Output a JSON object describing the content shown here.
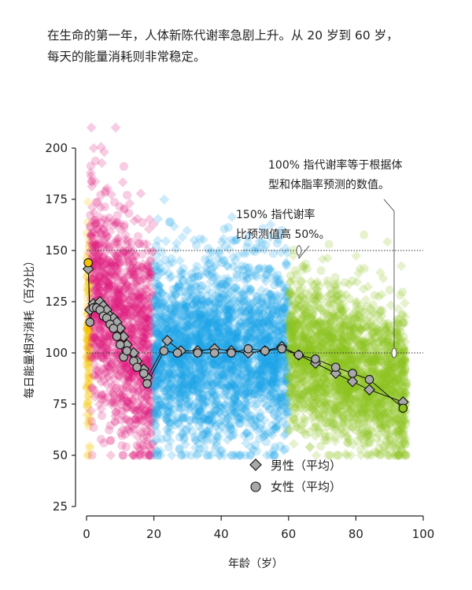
{
  "intro": {
    "line1": "在生命的第一年，人体新陈代谢率急剧上升。从 20 岁到 60 岁，",
    "line2": "每天的能量消耗则非常稳定。"
  },
  "chart_data": {
    "type": "scatter",
    "xlabel": "年龄（岁）",
    "ylabel": "每日能量相对消耗（百分比）",
    "xlim": [
      0,
      100
    ],
    "ylim": [
      25,
      200
    ],
    "x_ticks": [
      0,
      20,
      40,
      60,
      80,
      100
    ],
    "y_ticks": [
      25,
      50,
      75,
      100,
      125,
      150,
      175,
      200
    ],
    "reference_lines": [
      {
        "y": 150,
        "label": "150% 指代谢率比预测值高 50%。",
        "label_lines": [
          "150% 指代谢率",
          "比预测值高 50%。"
        ]
      },
      {
        "y": 100,
        "label": "100% 指代谢率等于根据体型和体脂率预测的数值。",
        "label_lines": [
          "100% 指代谢率等于根据体",
          "型和体脂率预测的数值。"
        ]
      }
    ],
    "legend": {
      "position": "bottom-center",
      "entries": [
        "男性（平均）",
        "女性（平均）"
      ]
    },
    "scatter_groups": [
      {
        "age_range": [
          0,
          1
        ],
        "color": "#f6c500",
        "y_center": 110,
        "y_spread": 25
      },
      {
        "age_range": [
          1,
          20
        ],
        "color": "#e0197d",
        "y_center": 125,
        "y_spread": 28
      },
      {
        "age_range": [
          20,
          60
        ],
        "color": "#1aa3e8",
        "y_center": 100,
        "y_spread": 22
      },
      {
        "age_range": [
          60,
          95
        ],
        "color": "#8dc21f",
        "y_center": 98,
        "y_spread": 18
      }
    ],
    "series": [
      {
        "name": "男性（平均）",
        "x": [
          0.5,
          1,
          2,
          3,
          4,
          5,
          6,
          7,
          8,
          9,
          10,
          11,
          12,
          14,
          15,
          17,
          18,
          24,
          28,
          33,
          38,
          43,
          48,
          53,
          58,
          63,
          68,
          74,
          79,
          84,
          94
        ],
        "y": [
          141,
          121,
          124,
          123,
          125,
          123,
          121,
          118,
          117,
          115,
          112,
          108,
          104,
          100,
          96,
          92,
          88,
          106,
          101,
          101,
          102,
          101,
          100,
          101,
          103,
          99,
          95,
          90,
          86,
          82,
          76
        ]
      },
      {
        "name": "女性（平均）",
        "x": [
          0.5,
          1,
          2,
          3,
          4,
          5,
          6,
          7,
          8,
          9,
          10,
          11,
          12,
          14,
          15,
          17,
          18,
          23,
          27,
          33,
          38,
          43,
          48,
          53,
          58,
          63,
          68,
          74,
          79,
          84,
          94
        ],
        "y": [
          144,
          115,
          122,
          122,
          121,
          118,
          117,
          114,
          112,
          108,
          104,
          98,
          101,
          96,
          93,
          90,
          85,
          101,
          100,
          100,
          100,
          100,
          102,
          101,
          102,
          99,
          97,
          93,
          90,
          87,
          73
        ]
      }
    ]
  }
}
